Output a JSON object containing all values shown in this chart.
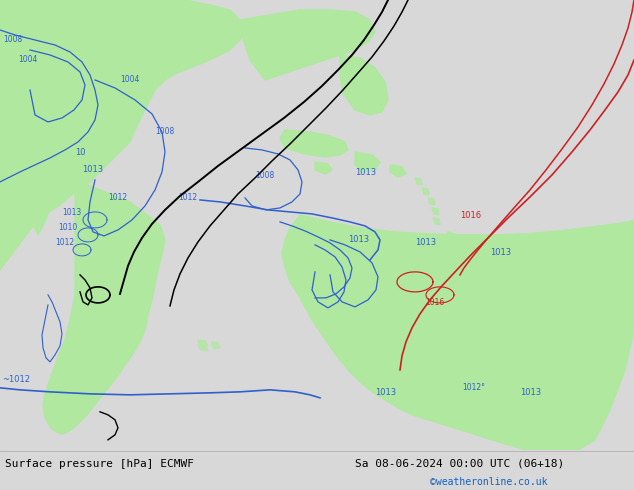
{
  "label_left": "Surface pressure [hPa] ECMWF",
  "label_center": "Sa 08-06-2024 00:00 UTC (06+18)",
  "label_website": "©weatheronline.co.uk",
  "bg_color": "#d8d8d8",
  "land_color": "#b0e8a0",
  "website_color": "#1560bd",
  "blue": "#3060cc",
  "black": "#000000",
  "red": "#cc2020"
}
